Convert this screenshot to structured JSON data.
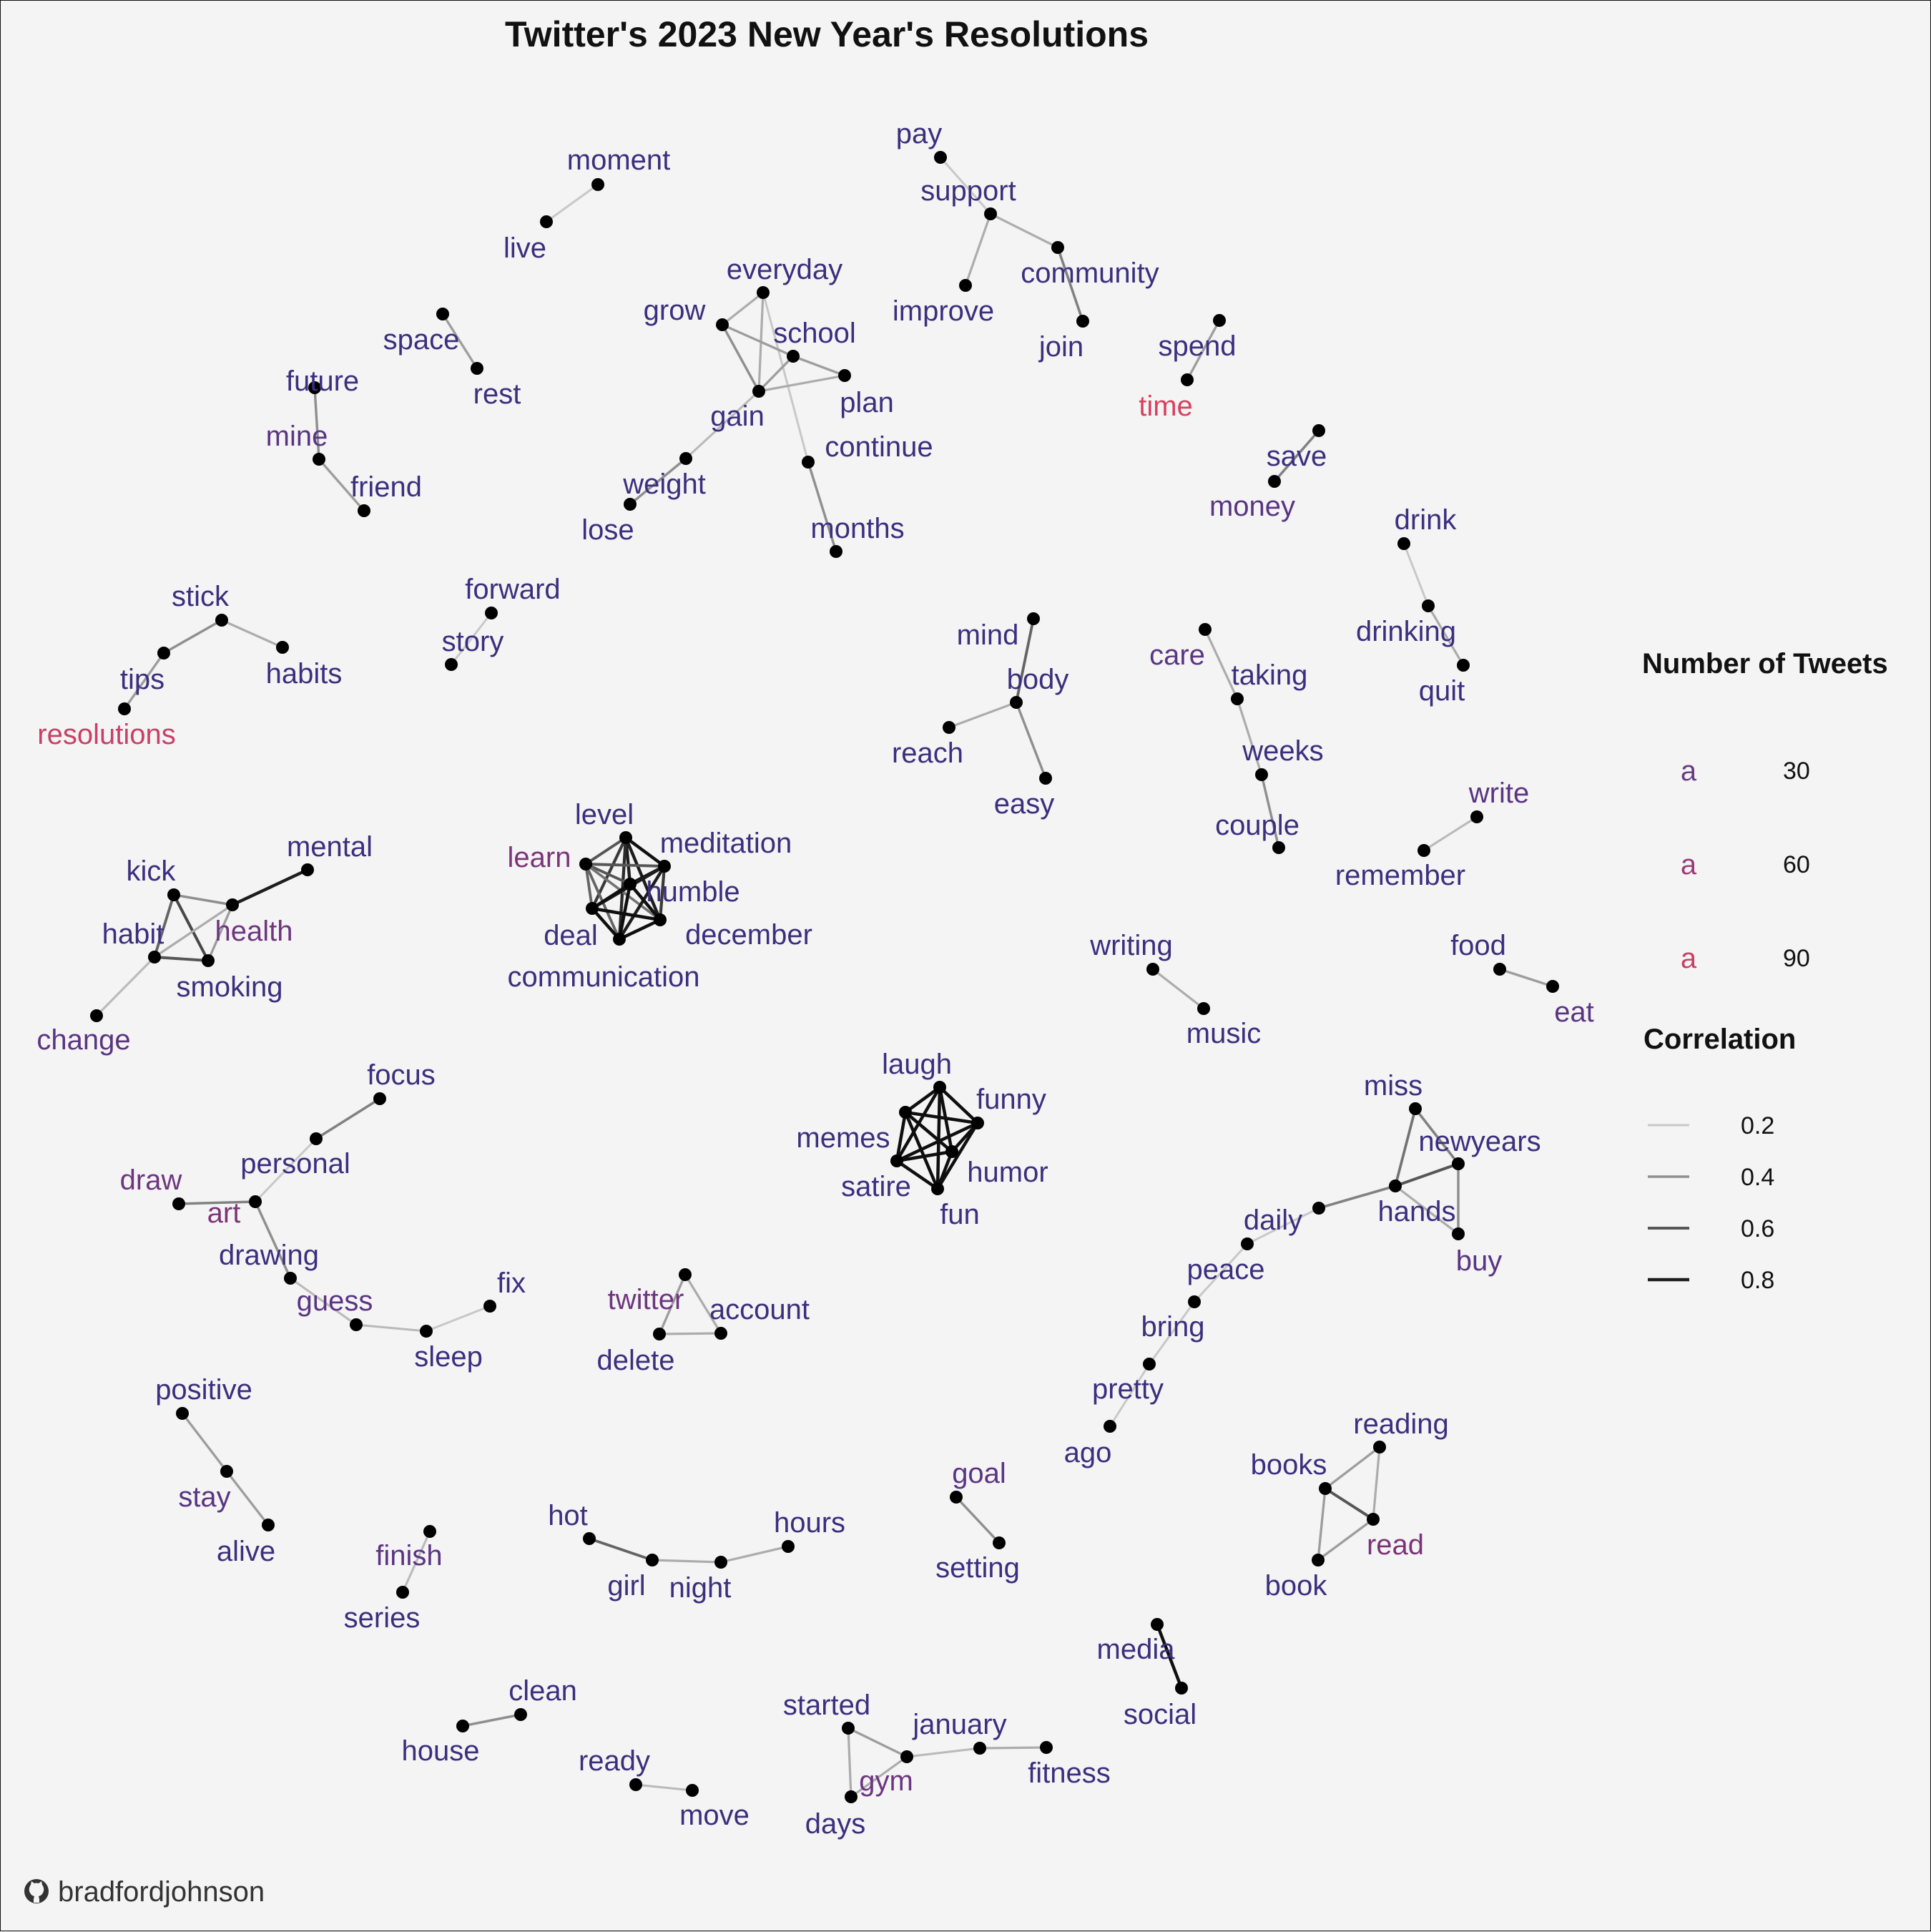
{
  "title": "Twitter's 2023 New Year's Resolutions",
  "credit": "bradfordjohnson",
  "colors": {
    "background": "#f4f4f4",
    "count_low": "#3b2c7e",
    "count_mid": "#7b3577",
    "count_high": "#d93d63"
  },
  "legend": {
    "count_title": "Number of Tweets",
    "count_symbol": "a",
    "count_items": [
      {
        "label": "30",
        "color": "#6a3a82"
      },
      {
        "label": "60",
        "color": "#9c3a74"
      },
      {
        "label": "90",
        "color": "#c93d66"
      }
    ],
    "corr_title": "Correlation",
    "corr_items": [
      {
        "label": "0.2",
        "value": 0.2
      },
      {
        "label": "0.4",
        "value": 0.4
      },
      {
        "label": "0.6",
        "value": 0.6
      },
      {
        "label": "0.8",
        "value": 0.8
      }
    ]
  },
  "github_icon": "github-icon",
  "nodes": [
    {
      "id": "moment",
      "color": "#3b2f7e"
    },
    {
      "id": "live",
      "color": "#3b2f7e"
    },
    {
      "id": "pay",
      "color": "#3b2f7e"
    },
    {
      "id": "support",
      "color": "#3b2f7e"
    },
    {
      "id": "improve",
      "color": "#3b2f7e"
    },
    {
      "id": "community",
      "color": "#3b2f7e"
    },
    {
      "id": "join",
      "color": "#3b2f7e"
    },
    {
      "id": "space",
      "color": "#3b2f7e"
    },
    {
      "id": "rest",
      "color": "#3b2f7e"
    },
    {
      "id": "everyday",
      "color": "#3b2f7e"
    },
    {
      "id": "grow",
      "color": "#3b2f7e"
    },
    {
      "id": "school",
      "color": "#3b2f7e"
    },
    {
      "id": "plan",
      "color": "#3b2f7e"
    },
    {
      "id": "gain",
      "color": "#3b2f7e"
    },
    {
      "id": "continue",
      "color": "#3b2f7e"
    },
    {
      "id": "weight",
      "color": "#3b2f7e"
    },
    {
      "id": "lose",
      "color": "#3b2f7e"
    },
    {
      "id": "months",
      "color": "#3b2f7e"
    },
    {
      "id": "spend",
      "color": "#3b2f7e"
    },
    {
      "id": "time",
      "color": "#d9405f"
    },
    {
      "id": "future",
      "color": "#3b2f7e"
    },
    {
      "id": "mine",
      "color": "#5a3583"
    },
    {
      "id": "friend",
      "color": "#3b2f7e"
    },
    {
      "id": "save",
      "color": "#3b2f7e"
    },
    {
      "id": "money",
      "color": "#5a3583"
    },
    {
      "id": "drink",
      "color": "#3b2f7e"
    },
    {
      "id": "drinking",
      "color": "#3b2f7e"
    },
    {
      "id": "quit",
      "color": "#3b2f7e"
    },
    {
      "id": "stick",
      "color": "#3b2f7e"
    },
    {
      "id": "tips",
      "color": "#3b2f7e"
    },
    {
      "id": "habits",
      "color": "#3b2f7e"
    },
    {
      "id": "resolutions",
      "color": "#c9406a"
    },
    {
      "id": "forward",
      "color": "#3b2f7e"
    },
    {
      "id": "story",
      "color": "#3b2f7e"
    },
    {
      "id": "mind",
      "color": "#3b2f7e"
    },
    {
      "id": "body",
      "color": "#3b2f7e"
    },
    {
      "id": "reach",
      "color": "#3b2f7e"
    },
    {
      "id": "easy",
      "color": "#3b2f7e"
    },
    {
      "id": "care",
      "color": "#5a3583"
    },
    {
      "id": "taking",
      "color": "#3b2f7e"
    },
    {
      "id": "weeks",
      "color": "#3b2f7e"
    },
    {
      "id": "couple",
      "color": "#3b2f7e"
    },
    {
      "id": "write",
      "color": "#5a3583"
    },
    {
      "id": "remember",
      "color": "#3b2f7e"
    },
    {
      "id": "kick",
      "color": "#3b2f7e"
    },
    {
      "id": "mental",
      "color": "#3b2f7e"
    },
    {
      "id": "habit",
      "color": "#3b2f7e"
    },
    {
      "id": "health",
      "color": "#6e3580"
    },
    {
      "id": "smoking",
      "color": "#3b2f7e"
    },
    {
      "id": "change",
      "color": "#5a3583"
    },
    {
      "id": "level",
      "color": "#3b2f7e"
    },
    {
      "id": "learn",
      "color": "#7b3577"
    },
    {
      "id": "meditation",
      "color": "#3b2f7e"
    },
    {
      "id": "humble",
      "color": "#3b2f7e"
    },
    {
      "id": "deal",
      "color": "#3b2f7e"
    },
    {
      "id": "december",
      "color": "#3b2f7e"
    },
    {
      "id": "communication",
      "color": "#3b2f7e"
    },
    {
      "id": "writing",
      "color": "#3b2f7e"
    },
    {
      "id": "music",
      "color": "#3b2f7e"
    },
    {
      "id": "food",
      "color": "#3b2f7e"
    },
    {
      "id": "eat",
      "color": "#5a3583"
    },
    {
      "id": "laugh",
      "color": "#3b2f7e"
    },
    {
      "id": "funny",
      "color": "#3b2f7e"
    },
    {
      "id": "memes",
      "color": "#3b2f7e"
    },
    {
      "id": "humor",
      "color": "#3b2f7e"
    },
    {
      "id": "satire",
      "color": "#3b2f7e"
    },
    {
      "id": "fun",
      "color": "#3b2f7e"
    },
    {
      "id": "focus",
      "color": "#3b2f7e"
    },
    {
      "id": "personal",
      "color": "#3b2f7e"
    },
    {
      "id": "draw",
      "color": "#6e3580"
    },
    {
      "id": "art",
      "color": "#7b3577"
    },
    {
      "id": "drawing",
      "color": "#3b2f7e"
    },
    {
      "id": "guess",
      "color": "#5a3583"
    },
    {
      "id": "sleep",
      "color": "#3b2f7e"
    },
    {
      "id": "fix",
      "color": "#3b2f7e"
    },
    {
      "id": "twitter",
      "color": "#6e3580"
    },
    {
      "id": "account",
      "color": "#3b2f7e"
    },
    {
      "id": "delete",
      "color": "#3b2f7e"
    },
    {
      "id": "miss",
      "color": "#3b2f7e"
    },
    {
      "id": "newyears",
      "color": "#3b2f7e"
    },
    {
      "id": "hands",
      "color": "#3b2f7e"
    },
    {
      "id": "buy",
      "color": "#5a3583"
    },
    {
      "id": "daily",
      "color": "#3b2f7e"
    },
    {
      "id": "peace",
      "color": "#3b2f7e"
    },
    {
      "id": "bring",
      "color": "#3b2f7e"
    },
    {
      "id": "pretty",
      "color": "#3b2f7e"
    },
    {
      "id": "ago",
      "color": "#3b2f7e"
    },
    {
      "id": "positive",
      "color": "#3b2f7e"
    },
    {
      "id": "stay",
      "color": "#5a3583"
    },
    {
      "id": "alive",
      "color": "#3b2f7e"
    },
    {
      "id": "reading",
      "color": "#3b2f7e"
    },
    {
      "id": "books",
      "color": "#3b2f7e"
    },
    {
      "id": "read",
      "color": "#7b3577"
    },
    {
      "id": "book",
      "color": "#3b2f7e"
    },
    {
      "id": "finish",
      "color": "#5a3583"
    },
    {
      "id": "series",
      "color": "#3b2f7e"
    },
    {
      "id": "hot",
      "color": "#3b2f7e"
    },
    {
      "id": "girl",
      "color": "#3b2f7e"
    },
    {
      "id": "night",
      "color": "#3b2f7e"
    },
    {
      "id": "hours",
      "color": "#3b2f7e"
    },
    {
      "id": "goal",
      "color": "#5a3583"
    },
    {
      "id": "setting",
      "color": "#3b2f7e"
    },
    {
      "id": "media",
      "color": "#3b2f7e"
    },
    {
      "id": "social",
      "color": "#3b2f7e"
    },
    {
      "id": "clean",
      "color": "#3b2f7e"
    },
    {
      "id": "house",
      "color": "#3b2f7e"
    },
    {
      "id": "ready",
      "color": "#3b2f7e"
    },
    {
      "id": "move",
      "color": "#3b2f7e"
    },
    {
      "id": "started",
      "color": "#3b2f7e"
    },
    {
      "id": "january",
      "color": "#3b2f7e"
    },
    {
      "id": "gym",
      "color": "#6e3580"
    },
    {
      "id": "fitness",
      "color": "#3b2f7e"
    },
    {
      "id": "days",
      "color": "#3b2f7e"
    }
  ],
  "edges": [
    {
      "a": "moment",
      "b": "live",
      "r": 0.2
    },
    {
      "a": "pay",
      "b": "support",
      "r": 0.2
    },
    {
      "a": "support",
      "b": "improve",
      "r": 0.3
    },
    {
      "a": "support",
      "b": "community",
      "r": 0.3
    },
    {
      "a": "community",
      "b": "join",
      "r": 0.45
    },
    {
      "a": "space",
      "b": "rest",
      "r": 0.35
    },
    {
      "a": "everyday",
      "b": "grow",
      "r": 0.3
    },
    {
      "a": "everyday",
      "b": "gain",
      "r": 0.3
    },
    {
      "a": "everyday",
      "b": "continue",
      "r": 0.2
    },
    {
      "a": "grow",
      "b": "school",
      "r": 0.35
    },
    {
      "a": "grow",
      "b": "gain",
      "r": 0.4
    },
    {
      "a": "school",
      "b": "gain",
      "r": 0.35
    },
    {
      "a": "school",
      "b": "plan",
      "r": 0.35
    },
    {
      "a": "gain",
      "b": "plan",
      "r": 0.3
    },
    {
      "a": "gain",
      "b": "weight",
      "r": 0.25
    },
    {
      "a": "weight",
      "b": "lose",
      "r": 0.4
    },
    {
      "a": "continue",
      "b": "months",
      "r": 0.4
    },
    {
      "a": "spend",
      "b": "time",
      "r": 0.35
    },
    {
      "a": "future",
      "b": "mine",
      "r": 0.4
    },
    {
      "a": "mine",
      "b": "friend",
      "r": 0.35
    },
    {
      "a": "save",
      "b": "money",
      "r": 0.45
    },
    {
      "a": "drink",
      "b": "drinking",
      "r": 0.2
    },
    {
      "a": "drinking",
      "b": "quit",
      "r": 0.3
    },
    {
      "a": "stick",
      "b": "tips",
      "r": 0.4
    },
    {
      "a": "stick",
      "b": "habits",
      "r": 0.3
    },
    {
      "a": "tips",
      "b": "resolutions",
      "r": 0.35
    },
    {
      "a": "forward",
      "b": "story",
      "r": 0.2
    },
    {
      "a": "mind",
      "b": "body",
      "r": 0.55
    },
    {
      "a": "body",
      "b": "reach",
      "r": 0.3
    },
    {
      "a": "body",
      "b": "easy",
      "r": 0.4
    },
    {
      "a": "care",
      "b": "taking",
      "r": 0.3
    },
    {
      "a": "taking",
      "b": "weeks",
      "r": 0.3
    },
    {
      "a": "weeks",
      "b": "couple",
      "r": 0.4
    },
    {
      "a": "write",
      "b": "remember",
      "r": 0.25
    },
    {
      "a": "kick",
      "b": "health",
      "r": 0.4
    },
    {
      "a": "kick",
      "b": "habit",
      "r": 0.55
    },
    {
      "a": "kick",
      "b": "smoking",
      "r": 0.65
    },
    {
      "a": "health",
      "b": "mental",
      "r": 0.8
    },
    {
      "a": "health",
      "b": "habit",
      "r": 0.3
    },
    {
      "a": "health",
      "b": "smoking",
      "r": 0.35
    },
    {
      "a": "habit",
      "b": "smoking",
      "r": 0.6
    },
    {
      "a": "habit",
      "b": "change",
      "r": 0.25
    },
    {
      "a": "level",
      "b": "learn",
      "r": 0.6
    },
    {
      "a": "level",
      "b": "meditation",
      "r": 0.85
    },
    {
      "a": "level",
      "b": "humble",
      "r": 0.8
    },
    {
      "a": "level",
      "b": "deal",
      "r": 0.7
    },
    {
      "a": "level",
      "b": "december",
      "r": 0.8
    },
    {
      "a": "level",
      "b": "communication",
      "r": 0.75
    },
    {
      "a": "learn",
      "b": "meditation",
      "r": 0.6
    },
    {
      "a": "learn",
      "b": "humble",
      "r": 0.6
    },
    {
      "a": "learn",
      "b": "deal",
      "r": 0.55
    },
    {
      "a": "learn",
      "b": "december",
      "r": 0.5
    },
    {
      "a": "learn",
      "b": "communication",
      "r": 0.55
    },
    {
      "a": "meditation",
      "b": "humble",
      "r": 0.85
    },
    {
      "a": "meditation",
      "b": "deal",
      "r": 0.8
    },
    {
      "a": "meditation",
      "b": "december",
      "r": 0.7
    },
    {
      "a": "meditation",
      "b": "communication",
      "r": 0.8
    },
    {
      "a": "humble",
      "b": "deal",
      "r": 0.85
    },
    {
      "a": "humble",
      "b": "december",
      "r": 0.85
    },
    {
      "a": "humble",
      "b": "communication",
      "r": 0.85
    },
    {
      "a": "deal",
      "b": "december",
      "r": 0.85
    },
    {
      "a": "deal",
      "b": "communication",
      "r": 0.85
    },
    {
      "a": "december",
      "b": "communication",
      "r": 0.85
    },
    {
      "a": "writing",
      "b": "music",
      "r": 0.3
    },
    {
      "a": "food",
      "b": "eat",
      "r": 0.35
    },
    {
      "a": "laugh",
      "b": "funny",
      "r": 0.85
    },
    {
      "a": "laugh",
      "b": "memes",
      "r": 0.85
    },
    {
      "a": "laugh",
      "b": "humor",
      "r": 0.85
    },
    {
      "a": "laugh",
      "b": "satire",
      "r": 0.85
    },
    {
      "a": "laugh",
      "b": "fun",
      "r": 0.85
    },
    {
      "a": "funny",
      "b": "memes",
      "r": 0.85
    },
    {
      "a": "funny",
      "b": "humor",
      "r": 0.85
    },
    {
      "a": "funny",
      "b": "satire",
      "r": 0.85
    },
    {
      "a": "funny",
      "b": "fun",
      "r": 0.85
    },
    {
      "a": "memes",
      "b": "humor",
      "r": 0.85
    },
    {
      "a": "memes",
      "b": "satire",
      "r": 0.85
    },
    {
      "a": "memes",
      "b": "fun",
      "r": 0.85
    },
    {
      "a": "humor",
      "b": "satire",
      "r": 0.85
    },
    {
      "a": "humor",
      "b": "fun",
      "r": 0.85
    },
    {
      "a": "satire",
      "b": "fun",
      "r": 0.85
    },
    {
      "a": "focus",
      "b": "personal",
      "r": 0.45
    },
    {
      "a": "personal",
      "b": "art",
      "r": 0.2
    },
    {
      "a": "draw",
      "b": "art",
      "r": 0.45
    },
    {
      "a": "art",
      "b": "drawing",
      "r": 0.4
    },
    {
      "a": "drawing",
      "b": "guess",
      "r": 0.25
    },
    {
      "a": "guess",
      "b": "sleep",
      "r": 0.25
    },
    {
      "a": "sleep",
      "b": "fix",
      "r": 0.2
    },
    {
      "a": "twitter",
      "b": "account",
      "r": 0.3
    },
    {
      "a": "twitter",
      "b": "delete",
      "r": 0.35
    },
    {
      "a": "account",
      "b": "delete",
      "r": 0.3
    },
    {
      "a": "miss",
      "b": "newyears",
      "r": 0.45
    },
    {
      "a": "miss",
      "b": "hands",
      "r": 0.5
    },
    {
      "a": "newyears",
      "b": "hands",
      "r": 0.6
    },
    {
      "a": "newyears",
      "b": "buy",
      "r": 0.4
    },
    {
      "a": "hands",
      "b": "buy",
      "r": 0.3
    },
    {
      "a": "hands",
      "b": "daily",
      "r": 0.45
    },
    {
      "a": "daily",
      "b": "peace",
      "r": 0.2
    },
    {
      "a": "peace",
      "b": "bring",
      "r": 0.2
    },
    {
      "a": "bring",
      "b": "pretty",
      "r": 0.2
    },
    {
      "a": "pretty",
      "b": "ago",
      "r": 0.2
    },
    {
      "a": "positive",
      "b": "stay",
      "r": 0.35
    },
    {
      "a": "stay",
      "b": "alive",
      "r": 0.35
    },
    {
      "a": "reading",
      "b": "books",
      "r": 0.35
    },
    {
      "a": "reading",
      "b": "read",
      "r": 0.3
    },
    {
      "a": "books",
      "b": "read",
      "r": 0.6
    },
    {
      "a": "books",
      "b": "book",
      "r": 0.35
    },
    {
      "a": "read",
      "b": "book",
      "r": 0.35
    },
    {
      "a": "finish",
      "b": "series",
      "r": 0.25
    },
    {
      "a": "hot",
      "b": "girl",
      "r": 0.55
    },
    {
      "a": "girl",
      "b": "night",
      "r": 0.3
    },
    {
      "a": "night",
      "b": "hours",
      "r": 0.3
    },
    {
      "a": "goal",
      "b": "setting",
      "r": 0.4
    },
    {
      "a": "media",
      "b": "social",
      "r": 0.85
    },
    {
      "a": "clean",
      "b": "house",
      "r": 0.4
    },
    {
      "a": "ready",
      "b": "move",
      "r": 0.25
    },
    {
      "a": "started",
      "b": "gym",
      "r": 0.35
    },
    {
      "a": "started",
      "b": "days",
      "r": 0.3
    },
    {
      "a": "gym",
      "b": "days",
      "r": 0.3
    },
    {
      "a": "gym",
      "b": "january",
      "r": 0.25
    },
    {
      "a": "january",
      "b": "fitness",
      "r": 0.3
    }
  ]
}
